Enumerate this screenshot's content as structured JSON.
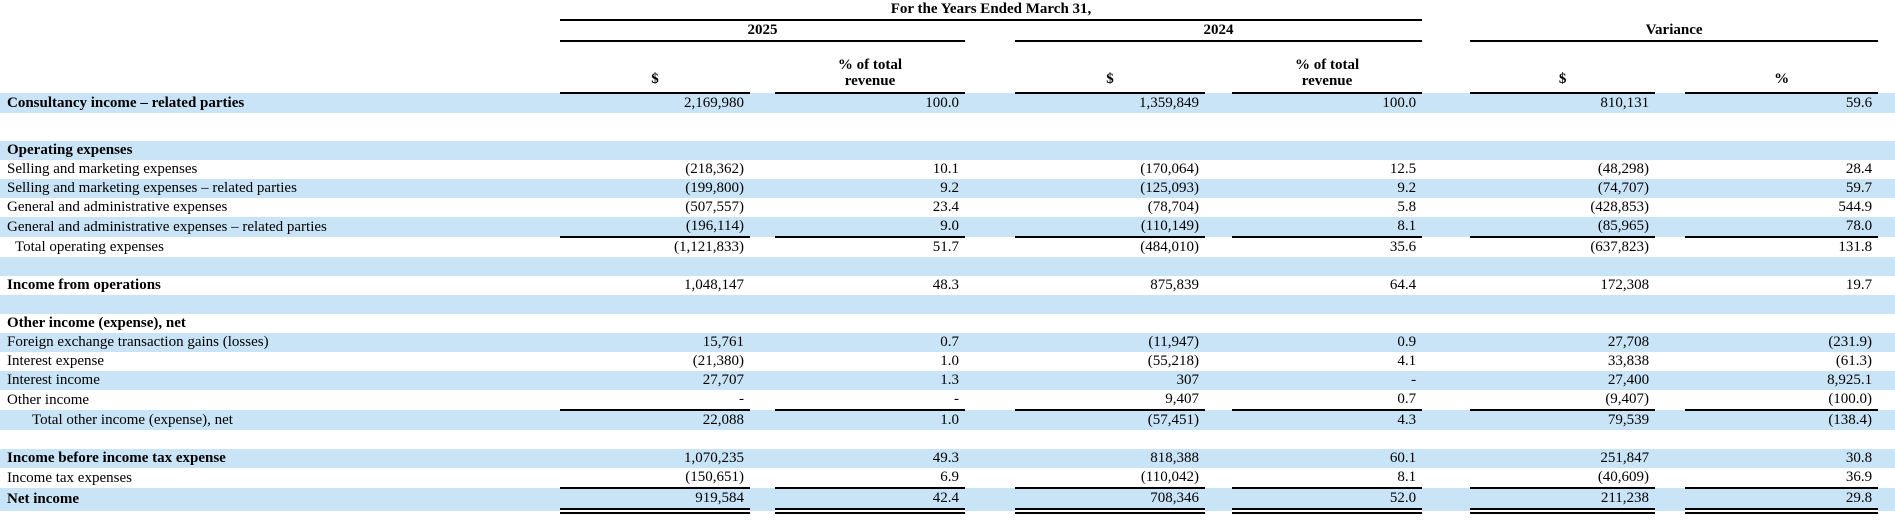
{
  "header": {
    "years_ended": "For the Years Ended March 31,",
    "groups": [
      "2025",
      "2024",
      "Variance"
    ],
    "dollar_label": "$",
    "pct_total_line1": "% of total",
    "pct_total_line2": "revenue",
    "pct_label": "%"
  },
  "colors": {
    "row_highlight": "#c9e4f7",
    "rule_line": "#000000"
  },
  "rows": [
    {
      "type": "data",
      "label": "Consultancy income – related parties",
      "bg": "blue",
      "bold": true,
      "indent": 0,
      "underline": "none",
      "values": [
        "2,169,980",
        "100.0",
        "1,359,849",
        "100.0",
        "810,131",
        "59.6"
      ]
    },
    {
      "type": "spacer",
      "bg": "white",
      "h": 28
    },
    {
      "type": "section",
      "label": "Operating expenses",
      "bg": "blue",
      "bold": true,
      "indent": 0,
      "underline": "none",
      "values": [
        "",
        "",
        "",
        "",
        "",
        ""
      ]
    },
    {
      "type": "data",
      "label": "Selling and marketing expenses",
      "bg": "white",
      "bold": false,
      "indent": 0,
      "underline": "none",
      "values": [
        "(218,362)",
        "10.1",
        "(170,064)",
        "12.5",
        "(48,298)",
        "28.4"
      ]
    },
    {
      "type": "data",
      "label": "Selling and marketing expenses – related parties",
      "bg": "blue",
      "bold": false,
      "indent": 0,
      "underline": "none",
      "values": [
        "(199,800)",
        "9.2",
        "(125,093)",
        "9.2",
        "(74,707)",
        "59.7"
      ]
    },
    {
      "type": "data",
      "label": "General and administrative expenses",
      "bg": "white",
      "bold": false,
      "indent": 0,
      "underline": "none",
      "values": [
        "(507,557)",
        "23.4",
        "(78,704)",
        "5.8",
        "(428,853)",
        "544.9"
      ]
    },
    {
      "type": "data",
      "label": "General and administrative expenses – related parties",
      "bg": "blue",
      "bold": false,
      "indent": 0,
      "underline": "single",
      "values": [
        "(196,114)",
        "9.0",
        "(110,149)",
        "8.1",
        "(85,965)",
        "78.0"
      ]
    },
    {
      "type": "data",
      "label": "Total operating expenses",
      "bg": "white",
      "bold": false,
      "indent": 1,
      "underline": "none",
      "values": [
        "(1,121,833)",
        "51.7",
        "(484,010)",
        "35.6",
        "(637,823)",
        "131.8"
      ]
    },
    {
      "type": "spacer",
      "bg": "blue",
      "h": 19
    },
    {
      "type": "data",
      "label": "Income from operations",
      "bg": "white",
      "bold": true,
      "indent": 0,
      "underline": "none",
      "values": [
        "1,048,147",
        "48.3",
        "875,839",
        "64.4",
        "172,308",
        "19.7"
      ]
    },
    {
      "type": "spacer",
      "bg": "blue",
      "h": 19
    },
    {
      "type": "section",
      "label": "Other income (expense), net",
      "bg": "white",
      "bold": true,
      "indent": 0,
      "underline": "none",
      "values": [
        "",
        "",
        "",
        "",
        "",
        ""
      ]
    },
    {
      "type": "data",
      "label": "Foreign exchange transaction gains (losses)",
      "bg": "blue",
      "bold": false,
      "indent": 0,
      "underline": "none",
      "values": [
        "15,761",
        "0.7",
        "(11,947)",
        "0.9",
        "27,708",
        "(231.9)"
      ]
    },
    {
      "type": "data",
      "label": "Interest expense",
      "bg": "white",
      "bold": false,
      "indent": 0,
      "underline": "none",
      "values": [
        "(21,380)",
        "1.0",
        "(55,218)",
        "4.1",
        "33,838",
        "(61.3)"
      ]
    },
    {
      "type": "data",
      "label": "Interest income",
      "bg": "blue",
      "bold": false,
      "indent": 0,
      "underline": "none",
      "values": [
        "27,707",
        "1.3",
        "307",
        "-",
        "27,400",
        "8,925.1"
      ]
    },
    {
      "type": "data",
      "label": "Other income",
      "bg": "white",
      "bold": false,
      "indent": 0,
      "underline": "single",
      "values": [
        "-",
        "-",
        "9,407",
        "0.7",
        "(9,407)",
        "(100.0)"
      ]
    },
    {
      "type": "data",
      "label": "Total other income (expense), net",
      "bg": "blue",
      "bold": false,
      "indent": 2,
      "underline": "none",
      "values": [
        "22,088",
        "1.0",
        "(57,451)",
        "4.3",
        "79,539",
        "(138.4)"
      ]
    },
    {
      "type": "spacer",
      "bg": "white",
      "h": 19
    },
    {
      "type": "data",
      "label": "Income before income tax expense",
      "bg": "blue",
      "bold": true,
      "indent": 0,
      "underline": "none",
      "values": [
        "1,070,235",
        "49.3",
        "818,388",
        "60.1",
        "251,847",
        "30.8"
      ]
    },
    {
      "type": "data",
      "label": "Income tax expenses",
      "bg": "white",
      "bold": false,
      "indent": 0,
      "underline": "single",
      "values": [
        "(150,651)",
        "6.9",
        "(110,042)",
        "8.1",
        "(40,609)",
        "36.9"
      ]
    },
    {
      "type": "data",
      "label": "Net income",
      "bg": "blue",
      "bold": true,
      "indent": 0,
      "underline": "double",
      "values": [
        "919,584",
        "42.4",
        "708,346",
        "52.0",
        "211,238",
        "29.8"
      ]
    }
  ]
}
